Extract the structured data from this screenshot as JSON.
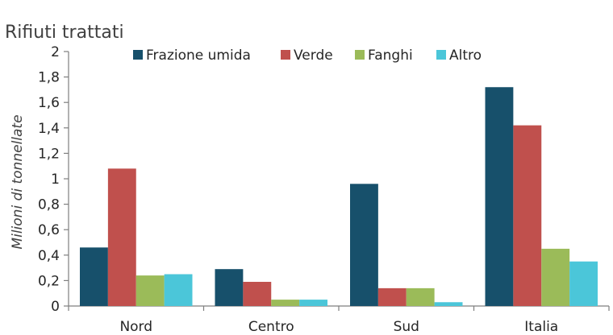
{
  "chart_data": {
    "type": "bar",
    "title": "Rifiuti trattati",
    "ylabel": "Milioni di tonnellate",
    "xlabel": "",
    "categories": [
      "Nord",
      "Centro",
      "Sud",
      "Italia"
    ],
    "ylim": [
      0,
      2
    ],
    "yticks": [
      "0",
      "0,2",
      "0,4",
      "0,6",
      "0,8",
      "1",
      "1,2",
      "1,4",
      "1,6",
      "1,8",
      "2"
    ],
    "legend_position": "top",
    "grid": false,
    "series": [
      {
        "name": "Frazione umida",
        "color": "#17506b",
        "values": [
          0.46,
          0.29,
          0.96,
          1.72
        ]
      },
      {
        "name": "Verde",
        "color": "#c0504d",
        "values": [
          1.08,
          0.19,
          0.14,
          1.42
        ]
      },
      {
        "name": "Fanghi",
        "color": "#9bbb59",
        "values": [
          0.24,
          0.05,
          0.14,
          0.45
        ]
      },
      {
        "name": "Altro",
        "color": "#4bc6d9",
        "values": [
          0.25,
          0.05,
          0.03,
          0.35
        ]
      }
    ]
  }
}
